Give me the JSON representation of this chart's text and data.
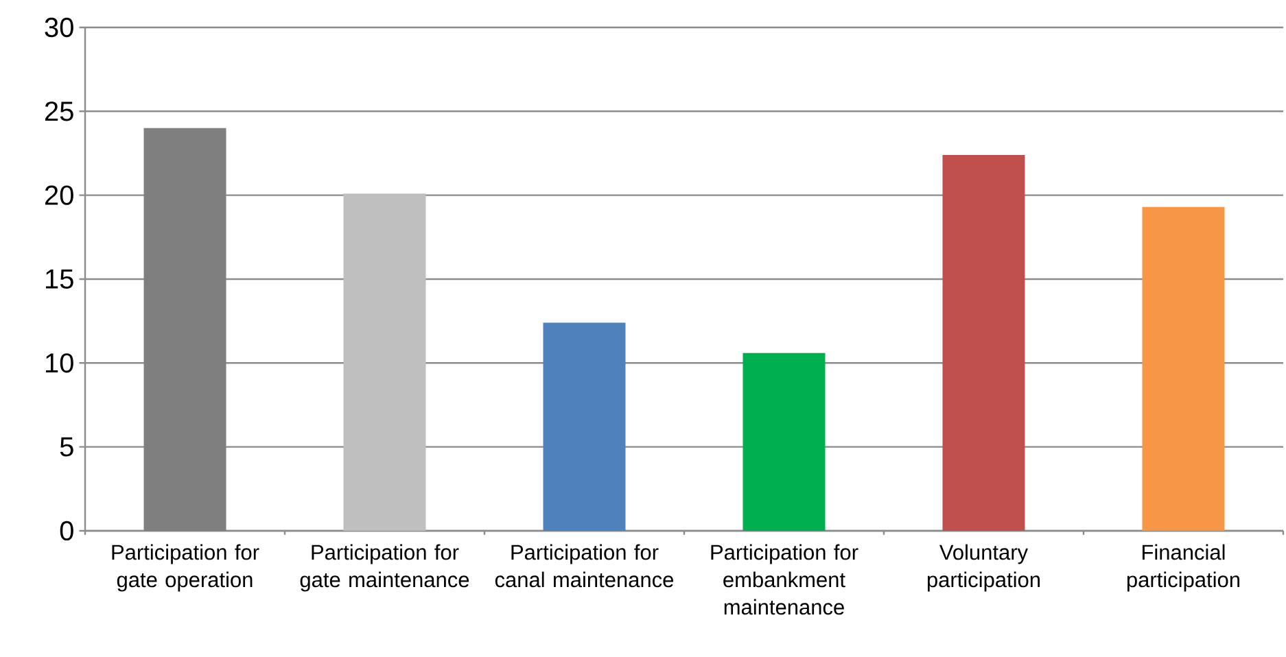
{
  "chart_data": {
    "type": "bar",
    "categories": [
      "Participation for gate operation",
      "Participation for gate maintenance",
      "Participation for canal maintenance",
      "Participation for embankment maintenance",
      "Voluntary participation",
      "Financial participation"
    ],
    "values": [
      24.0,
      20.1,
      12.4,
      10.6,
      22.4,
      19.3
    ],
    "colors": [
      "#7f7f7f",
      "#bfbfbf",
      "#4f81bd",
      "#00b050",
      "#c0504d",
      "#f79646"
    ],
    "ylim": [
      0,
      30
    ],
    "yticks": [
      0,
      5,
      10,
      15,
      20,
      25,
      30
    ],
    "grid": "y"
  }
}
